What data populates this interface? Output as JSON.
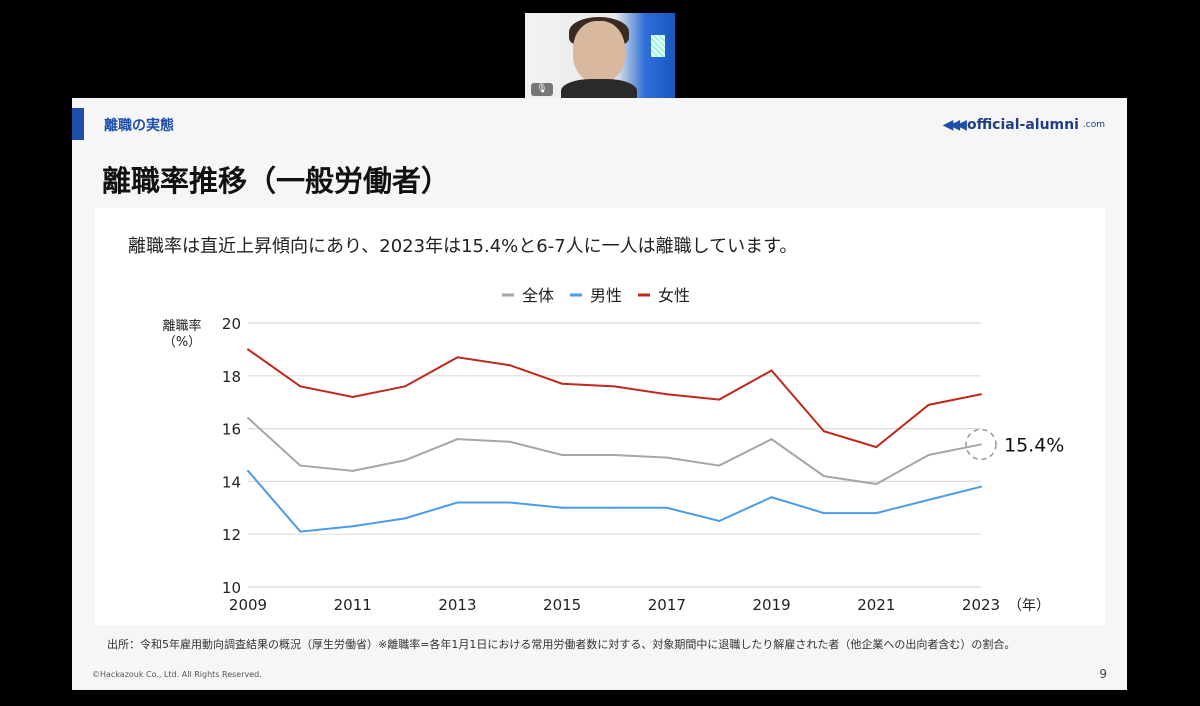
{
  "video": {
    "mic_icon": "microphone-icon"
  },
  "slide": {
    "section": "離職の実態",
    "logo": {
      "name": "official-alumni",
      "suffix": ".com"
    },
    "title": "離職率推移（一般労働者）",
    "lead": "離職率は直近上昇傾向にあり、2023年は15.4%と6-7人に一人は離職しています。",
    "source": "出所：令和5年雇用動向調査結果の概況（厚生労働省）※離職率=各年1月1日における常用労働者数に対する、対象期間中に退職したり解雇された者（他企業への出向者含む）の割合。",
    "copyright": "©Hackazouk Co., Ltd. All Rights Reserved.",
    "page": "9"
  },
  "chart_data": {
    "type": "line",
    "ylabel": "離職率\n（%）",
    "ylabel_line1": "離職率",
    "ylabel_line2": "（%）",
    "xlabel": "（年）",
    "ylim": [
      10,
      20
    ],
    "yticks": [
      "10",
      "12",
      "14",
      "16",
      "18",
      "20"
    ],
    "xticks": [
      "2009",
      "2011",
      "2013",
      "2015",
      "2017",
      "2019",
      "2021",
      "2023"
    ],
    "x": [
      2009,
      2010,
      2011,
      2012,
      2013,
      2014,
      2015,
      2016,
      2017,
      2018,
      2019,
      2020,
      2021,
      2022,
      2023
    ],
    "series": [
      {
        "name": "全体",
        "color": "#a6a6a6",
        "values": [
          16.4,
          14.6,
          14.4,
          14.8,
          15.6,
          15.5,
          15.0,
          15.0,
          14.9,
          14.6,
          15.6,
          14.2,
          13.9,
          15.0,
          15.4
        ]
      },
      {
        "name": "男性",
        "color": "#4a9be8",
        "values": [
          14.4,
          12.1,
          12.3,
          12.6,
          13.2,
          13.2,
          13.0,
          13.0,
          13.0,
          12.5,
          13.4,
          12.8,
          12.8,
          13.3,
          13.8
        ]
      },
      {
        "name": "女性",
        "color": "#c0281c",
        "values": [
          19.0,
          17.6,
          17.2,
          17.6,
          18.7,
          18.4,
          17.7,
          17.6,
          17.3,
          17.1,
          18.2,
          15.9,
          15.3,
          16.9,
          17.3
        ]
      }
    ],
    "legend_position": "top-center",
    "annotation": "15.4%",
    "grid": true
  }
}
